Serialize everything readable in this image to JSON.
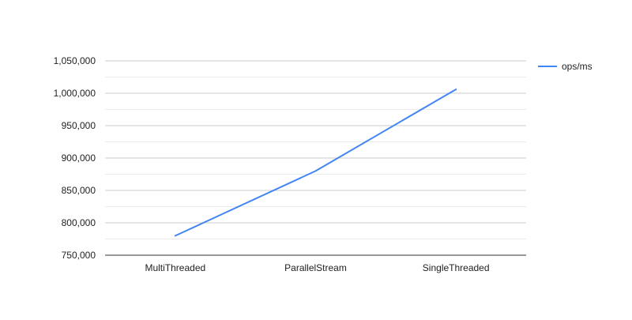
{
  "chart_data": {
    "type": "line",
    "title": "",
    "xlabel": "",
    "ylabel": "",
    "categories": [
      "MultiThreaded",
      "ParallelStream",
      "SingleThreaded"
    ],
    "series": [
      {
        "name": "ops/ms",
        "color": "#4285f4",
        "values": [
          780000,
          880000,
          1006000
        ]
      }
    ],
    "ylim": [
      750000,
      1050000
    ],
    "y_ticks": [
      750000,
      800000,
      850000,
      900000,
      950000,
      1000000,
      1050000
    ],
    "y_tick_labels": [
      "750,000",
      "800,000",
      "850,000",
      "900,000",
      "950,000",
      "1,000,000",
      "1,050,000"
    ],
    "grid": true,
    "minor_grid": true,
    "legend_position": "right"
  }
}
